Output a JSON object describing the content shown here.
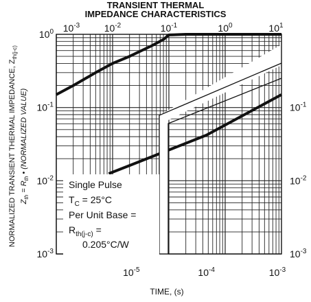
{
  "chart_data": {
    "type": "line",
    "title_line1": "TRANSIENT THERMAL",
    "title_line2": "IMPEDANCE CHARACTERISTICS",
    "ylabel_line1": "NORMALIZED TRANSIENT THERMAL IMPEDANCE, Z",
    "ylabel_line1_sub": "th(j-c)",
    "ylabel_line2_a": "Z",
    "ylabel_line2_a_sub": "th",
    "ylabel_line2_b": " = R",
    "ylabel_line2_b_sub": "th",
    "ylabel_line2_c": " • (NORMALIZED VALUE)",
    "xlabel": "TIME, (s)",
    "y_scale": "log",
    "ylim": [
      0.001,
      1
    ],
    "left_y_ticks": [
      "10",
      "10",
      "10",
      "10"
    ],
    "left_y_exponents": [
      "0",
      "-1",
      "-2",
      "-3"
    ],
    "right_y_ticks": [
      "10",
      "10",
      "10"
    ],
    "right_y_exponents": [
      "-1",
      "-2",
      "-3"
    ],
    "top_x_ticks": [
      "10",
      "10",
      "10",
      "10",
      "10"
    ],
    "top_x_exponents": [
      "-3",
      "-2",
      "-1",
      "0",
      "1"
    ],
    "bottom_x_ticks": [
      "10",
      "10",
      "10"
    ],
    "bottom_x_exponents": [
      "-5",
      "-4",
      "-3"
    ],
    "panels": [
      {
        "name": "upper",
        "x_scale": "log",
        "xlim": [
          0.001,
          10
        ],
        "series": [
          {
            "x": [
              0.001,
              0.002,
              0.005,
              0.01,
              0.02,
              0.05,
              0.08,
              0.1,
              0.2,
              0.5,
              1,
              2,
              5,
              10
            ],
            "y": [
              0.15,
              0.2,
              0.3,
              0.4,
              0.5,
              0.7,
              0.85,
              0.98,
              1.0,
              1.0,
              1.0,
              1.0,
              1.0,
              1.0
            ]
          }
        ]
      },
      {
        "name": "lower",
        "x_scale": "log",
        "xlim": [
          1e-06,
          0.001
        ],
        "series": [
          {
            "x": [
              5e-06,
              1e-05,
              0.0001,
              0.001
            ],
            "y": [
              0.0125,
              0.0165,
              0.042,
              0.15
            ]
          }
        ]
      }
    ],
    "annotation": {
      "line1": "Single Pulse",
      "line2_a": "T",
      "line2_sub": "C",
      "line2_b": " = 25°C",
      "line3": "Per Unit Base =",
      "line4_a": "R",
      "line4_sub": "th(j-c)",
      "line4_b": " =",
      "line5": "0.205°C/W"
    }
  }
}
